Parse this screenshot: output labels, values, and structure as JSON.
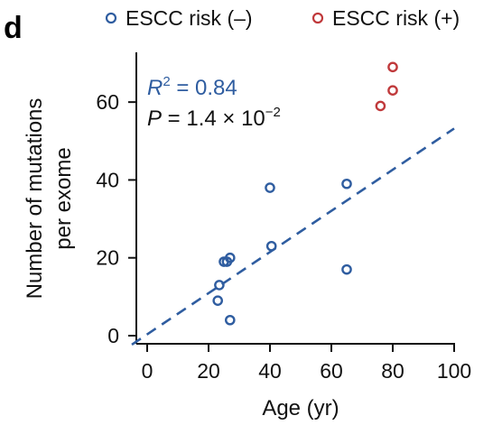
{
  "panel_label": "d",
  "chart_data": {
    "type": "scatter",
    "xlabel": "Age (yr)",
    "ylabel_lines": [
      "Number of mutations",
      "per exome"
    ],
    "xlim": [
      0,
      100
    ],
    "ylim": [
      0,
      70
    ],
    "xticks": [
      0,
      20,
      40,
      60,
      80,
      100
    ],
    "yticks": [
      0,
      20,
      40,
      60
    ],
    "grid": false,
    "legend_position": "top",
    "series": [
      {
        "name": "ESCC risk (–)",
        "color": "#2f5da0",
        "marker": "open-circle",
        "points": [
          {
            "x": 23,
            "y": 9
          },
          {
            "x": 23.5,
            "y": 13
          },
          {
            "x": 25,
            "y": 19
          },
          {
            "x": 26,
            "y": 19
          },
          {
            "x": 27,
            "y": 20
          },
          {
            "x": 27,
            "y": 4
          },
          {
            "x": 40,
            "y": 38
          },
          {
            "x": 40.5,
            "y": 23
          },
          {
            "x": 65,
            "y": 39
          },
          {
            "x": 65,
            "y": 17
          }
        ]
      },
      {
        "name": "ESCC risk (+)",
        "color": "#c0393b",
        "marker": "open-circle",
        "points": [
          {
            "x": 76,
            "y": 59
          },
          {
            "x": 80,
            "y": 63
          },
          {
            "x": 80,
            "y": 69
          }
        ]
      }
    ],
    "fit_line": {
      "style": "dashed",
      "color": "#2f5da0",
      "x": [
        -5,
        100
      ],
      "y": [
        -2.3,
        53.2
      ]
    },
    "annotations": {
      "r2_label": "R",
      "r2_sup": "2",
      "r2_value": " = 0.84",
      "r2_color": "#2f5da0",
      "p_label": "P",
      "p_value": " = 1.4 × 10",
      "p_sup": "−2"
    }
  }
}
